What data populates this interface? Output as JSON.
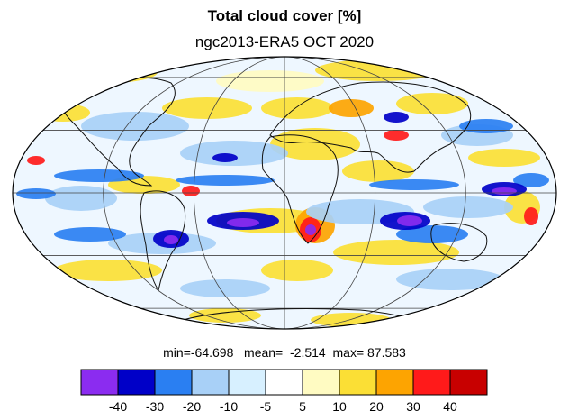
{
  "title": "Total cloud cover [%]",
  "subtitle": "ngc2013-ERA5 OCT 2020",
  "stats": {
    "min_label": "min=",
    "min": "-64.698",
    "mean_label": "mean=",
    "mean": "-2.514",
    "max_label": "max=",
    "max": "87.583"
  },
  "legend": {
    "colors": [
      "#8b2cf0",
      "#0000c8",
      "#2a7ff2",
      "#a8d0f7",
      "#d7f0ff",
      "#ffffff",
      "#fffbc2",
      "#fbdf35",
      "#fda401",
      "#ff1a1a",
      "#c80000"
    ],
    "ticks": [
      "-40",
      "-30",
      "-20",
      "-10",
      "-5",
      "5",
      "10",
      "20",
      "30",
      "40"
    ]
  },
  "chart_data": {
    "type": "heatmap",
    "title": "Total cloud cover [%]",
    "subtitle": "ngc2013-ERA5 OCT 2020",
    "projection": "Mollweide",
    "contour_levels": [
      -40,
      -30,
      -20,
      -10,
      -5,
      5,
      10,
      20,
      30,
      40
    ],
    "min": -64.698,
    "mean": -2.514,
    "max": 87.583
  }
}
